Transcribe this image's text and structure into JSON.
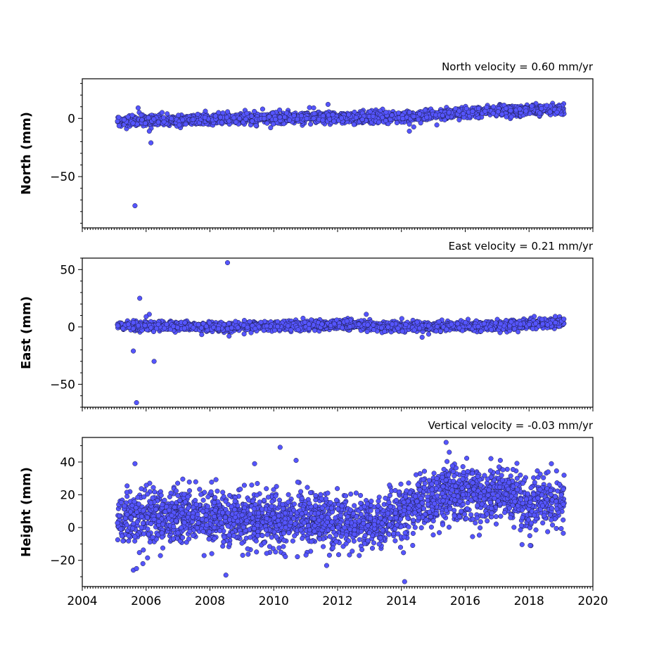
{
  "chart_data": [
    {
      "type": "scatter",
      "title": "North velocity = 0.60 mm/yr",
      "ylabel": "North (mm)",
      "xlim": [
        2004,
        2020
      ],
      "ylim": [
        -94,
        34
      ],
      "yticks": [
        0,
        -50
      ],
      "xticks": [
        2004,
        2006,
        2008,
        2010,
        2012,
        2014,
        2016,
        2018,
        2020
      ],
      "show_xtick_labels": false,
      "marker_color": "#5555ff",
      "trend": [
        [
          2005.1,
          -3
        ],
        [
          2007,
          -1.5
        ],
        [
          2009,
          0
        ],
        [
          2011,
          1
        ],
        [
          2013,
          0.5
        ],
        [
          2014.5,
          2
        ],
        [
          2016,
          5
        ],
        [
          2017.5,
          7
        ],
        [
          2019.1,
          8
        ]
      ],
      "noise": 2.2,
      "outliers": [
        [
          2005.65,
          -75
        ],
        [
          2005.75,
          9
        ],
        [
          2006.15,
          -21
        ],
        [
          2006.1,
          -11
        ],
        [
          2011.7,
          12
        ],
        [
          2014.25,
          -11
        ],
        [
          2014.25,
          -5
        ],
        [
          2006.5,
          5
        ],
        [
          2009.65,
          8
        ],
        [
          2011.25,
          9
        ]
      ]
    },
    {
      "type": "scatter",
      "title": "East velocity = 0.21 mm/yr",
      "ylabel": "East (mm)",
      "xlim": [
        2004,
        2020
      ],
      "ylim": [
        -70,
        60
      ],
      "yticks": [
        50,
        0,
        -50
      ],
      "xticks": [
        2004,
        2006,
        2008,
        2010,
        2012,
        2014,
        2016,
        2018,
        2020
      ],
      "show_xtick_labels": false,
      "marker_color": "#5555ff",
      "trend": [
        [
          2005.1,
          1
        ],
        [
          2008.5,
          0
        ],
        [
          2012,
          2
        ],
        [
          2014,
          0
        ],
        [
          2017,
          1
        ],
        [
          2019.1,
          4
        ]
      ],
      "noise": 2.0,
      "outliers": [
        [
          2008.55,
          56
        ],
        [
          2005.8,
          25
        ],
        [
          2005.6,
          -21
        ],
        [
          2006.25,
          -30
        ],
        [
          2005.7,
          -66
        ],
        [
          2006.1,
          11
        ],
        [
          2006.0,
          9
        ],
        [
          2012.9,
          11
        ],
        [
          2014.65,
          -9
        ],
        [
          2008.6,
          -8
        ]
      ]
    },
    {
      "type": "scatter",
      "title": "Vertical velocity = -0.03 mm/yr",
      "ylabel": "Height (mm)",
      "xlim": [
        2004,
        2020
      ],
      "ylim": [
        -36,
        55
      ],
      "yticks": [
        40,
        20,
        0,
        -20
      ],
      "xticks": [
        2004,
        2006,
        2008,
        2010,
        2012,
        2014,
        2016,
        2018,
        2020
      ],
      "xtick_labels": [
        "2004",
        "2006",
        "2008",
        "2010",
        "2012",
        "2014",
        "2016",
        "2018",
        "2020"
      ],
      "show_xtick_labels": true,
      "marker_color": "#5555ff",
      "trend": [
        [
          2005.1,
          5
        ],
        [
          2007,
          8
        ],
        [
          2009,
          4
        ],
        [
          2011,
          6
        ],
        [
          2012.5,
          4
        ],
        [
          2013.3,
          2
        ],
        [
          2014.5,
          14
        ],
        [
          2015.5,
          22
        ],
        [
          2016.5,
          18
        ],
        [
          2017.5,
          20
        ],
        [
          2018,
          12
        ],
        [
          2018.5,
          18
        ],
        [
          2019.1,
          14
        ]
      ],
      "noise": 8.0,
      "outliers": [
        [
          2015.4,
          52
        ],
        [
          2015.5,
          46
        ],
        [
          2010.2,
          49
        ],
        [
          2010.7,
          41
        ],
        [
          2014.1,
          -33
        ],
        [
          2008.5,
          -29
        ],
        [
          2005.6,
          -26
        ],
        [
          2005.7,
          -25
        ],
        [
          2005.9,
          -22
        ],
        [
          2009.4,
          39
        ],
        [
          2018.7,
          39
        ],
        [
          2017.1,
          41
        ],
        [
          2005.65,
          39
        ]
      ]
    }
  ]
}
